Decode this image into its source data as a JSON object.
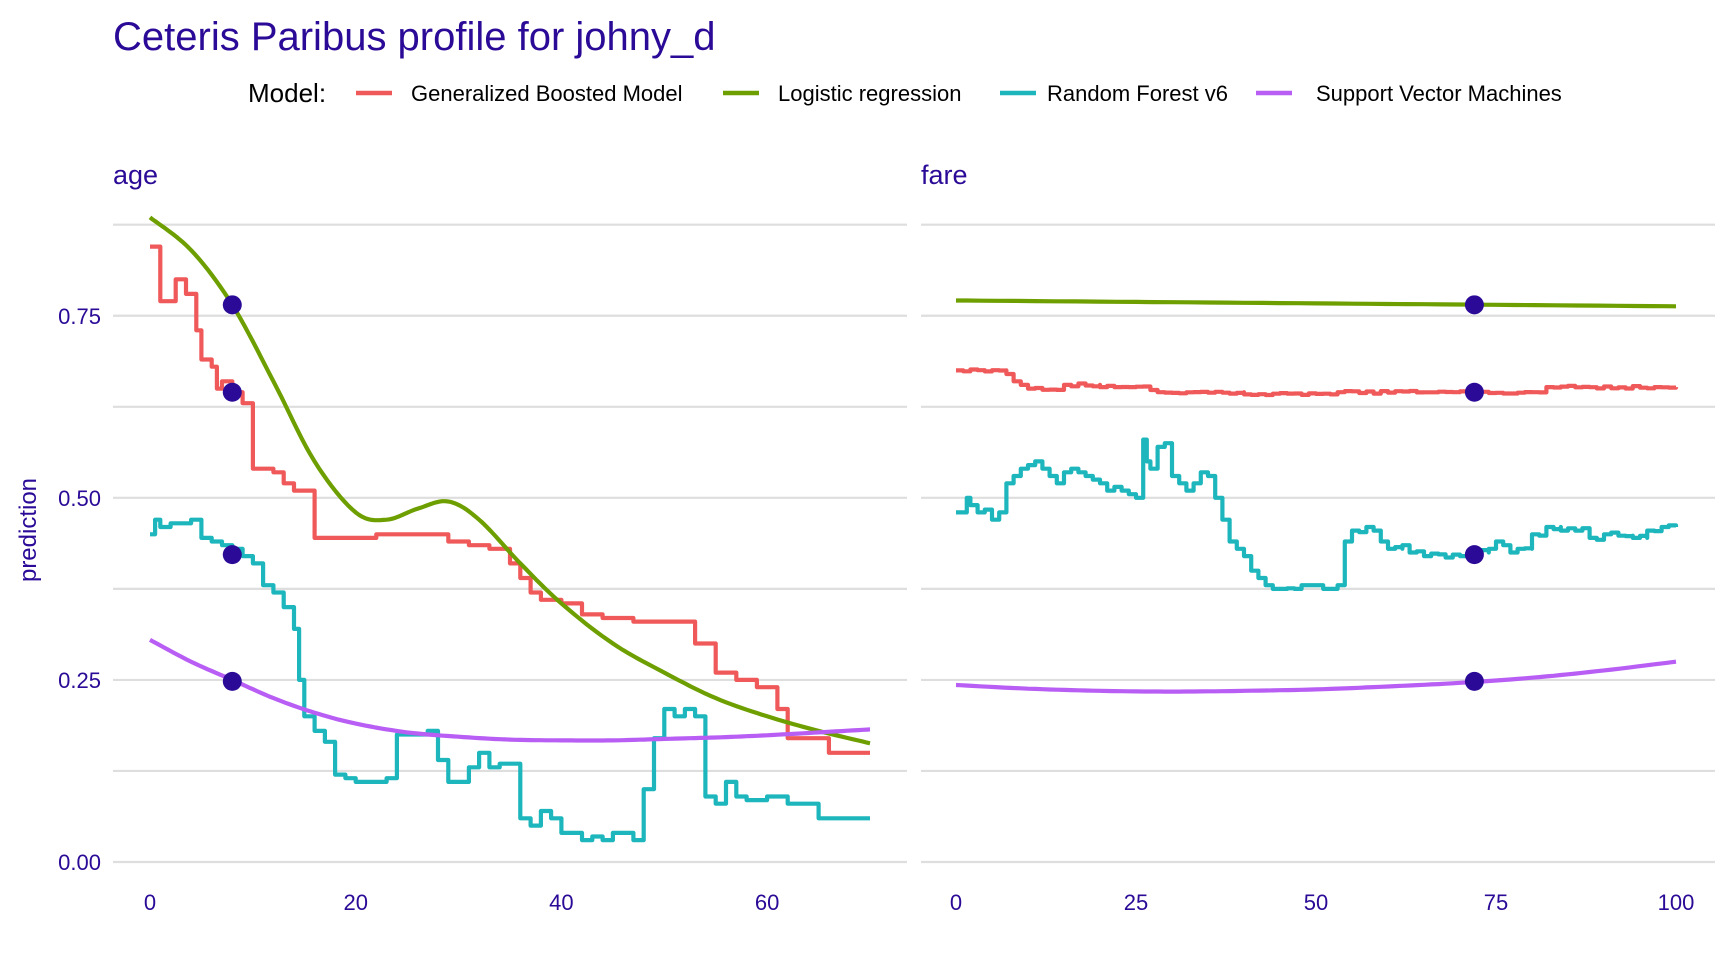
{
  "theme": {
    "text_color": "#2a0a96",
    "point_color": "#2a0a96",
    "grid_color": "#dedede"
  },
  "legend": {
    "title": "Model:",
    "items": [
      {
        "label": "Generalized Boosted Model",
        "color": "#f0595a"
      },
      {
        "label": "Logistic regression",
        "color": "#6e9f00"
      },
      {
        "label": "Random Forest v6",
        "color": "#1db6bc"
      },
      {
        "label": "Support Vector Machines",
        "color": "#b85ef4"
      }
    ]
  },
  "chart_data": {
    "type": "line",
    "title": "Ceteris Paribus profile for johny_d",
    "ylabel": "prediction",
    "ylim": [
      0,
      0.9
    ],
    "yticks": [
      0,
      0.25,
      0.5,
      0.75
    ],
    "ytick_labels": [
      "0.00",
      "0.25",
      "0.50",
      "0.75"
    ],
    "grid": true,
    "legend_position": "top",
    "panels": [
      {
        "name": "age",
        "xlim": [
          0,
          70
        ],
        "xticks": [
          0,
          20,
          40,
          60
        ],
        "observation_x": 8,
        "series": [
          {
            "name": "Generalized Boosted Model",
            "step": true,
            "x": [
              0,
              1,
              1.5,
              2.5,
              3.5,
              4.5,
              5,
              6,
              6.5,
              7,
              8,
              9,
              10,
              12,
              13,
              14,
              16,
              20,
              22,
              25,
              29,
              31,
              33,
              35,
              36,
              37,
              38,
              40,
              42,
              44,
              47,
              50,
              52,
              53,
              55,
              57,
              59,
              61,
              62,
              66,
              70
            ],
            "y": [
              0.845,
              0.77,
              0.77,
              0.8,
              0.78,
              0.73,
              0.69,
              0.68,
              0.65,
              0.66,
              0.645,
              0.63,
              0.54,
              0.535,
              0.52,
              0.51,
              0.445,
              0.445,
              0.45,
              0.45,
              0.44,
              0.435,
              0.43,
              0.41,
              0.39,
              0.37,
              0.36,
              0.355,
              0.34,
              0.335,
              0.33,
              0.33,
              0.33,
              0.3,
              0.26,
              0.25,
              0.24,
              0.21,
              0.17,
              0.15,
              0.15
            ]
          },
          {
            "name": "Logistic regression",
            "x": [
              0,
              4,
              8,
              12,
              16,
              20,
              23,
              26,
              29,
              32,
              36,
              40,
              45,
              50,
              55,
              60,
              65,
              70
            ],
            "y": [
              0.885,
              0.84,
              0.765,
              0.66,
              0.55,
              0.48,
              0.47,
              0.485,
              0.495,
              0.47,
              0.41,
              0.355,
              0.3,
              0.26,
              0.225,
              0.2,
              0.18,
              0.163
            ]
          },
          {
            "name": "Random Forest v6",
            "step": true,
            "x": [
              0,
              0.5,
              1,
              2,
              4,
              5,
              6,
              7,
              8,
              9,
              10,
              11,
              12,
              13,
              14,
              14.5,
              15,
              16,
              17,
              18,
              19,
              20,
              21,
              23,
              24,
              25,
              26,
              27,
              28,
              29,
              30,
              31,
              32,
              33,
              34,
              35,
              36,
              37,
              38,
              39,
              40,
              41,
              42,
              43,
              44,
              45,
              46,
              47,
              48,
              49,
              50,
              51,
              52,
              53,
              54,
              55,
              56,
              57,
              58,
              60,
              62,
              63,
              65,
              70
            ],
            "y": [
              0.45,
              0.47,
              0.46,
              0.465,
              0.47,
              0.445,
              0.44,
              0.435,
              0.43,
              0.42,
              0.41,
              0.38,
              0.37,
              0.35,
              0.32,
              0.25,
              0.2,
              0.18,
              0.165,
              0.12,
              0.115,
              0.11,
              0.11,
              0.115,
              0.175,
              0.175,
              0.175,
              0.18,
              0.14,
              0.11,
              0.11,
              0.13,
              0.15,
              0.13,
              0.135,
              0.135,
              0.06,
              0.05,
              0.07,
              0.06,
              0.04,
              0.04,
              0.03,
              0.035,
              0.03,
              0.04,
              0.04,
              0.03,
              0.1,
              0.17,
              0.21,
              0.2,
              0.21,
              0.2,
              0.09,
              0.08,
              0.11,
              0.09,
              0.085,
              0.09,
              0.08,
              0.08,
              0.06,
              0.06
            ]
          },
          {
            "name": "Support Vector Machines",
            "x": [
              0,
              4,
              8,
              12,
              16,
              20,
              25,
              30,
              35,
              40,
              45,
              50,
              55,
              60,
              65,
              70
            ],
            "y": [
              0.305,
              0.275,
              0.25,
              0.225,
              0.205,
              0.19,
              0.178,
              0.172,
              0.168,
              0.167,
              0.167,
              0.169,
              0.171,
              0.174,
              0.178,
              0.182
            ]
          }
        ],
        "observation_points": [
          0.765,
          0.645,
          0.422,
          0.248
        ]
      },
      {
        "name": "fare",
        "xlim": [
          0,
          100
        ],
        "xticks": [
          0,
          25,
          50,
          75,
          100
        ],
        "observation_x": 72,
        "series": [
          {
            "name": "Generalized Boosted Model",
            "step": true,
            "x": [
              0,
              7,
              8,
              9,
              10,
              15,
              20,
              27,
              28,
              40,
              52,
              53,
              80,
              82,
              100
            ],
            "y": [
              0.675,
              0.67,
              0.66,
              0.655,
              0.65,
              0.655,
              0.652,
              0.648,
              0.645,
              0.642,
              0.642,
              0.645,
              0.645,
              0.652,
              0.652
            ],
            "noise": 0.002
          },
          {
            "name": "Logistic regression",
            "x": [
              0,
              25,
              50,
              75,
              100
            ],
            "y": [
              0.771,
              0.769,
              0.767,
              0.765,
              0.763
            ]
          },
          {
            "name": "Random Forest v6",
            "step": true,
            "x": [
              0,
              1.5,
              2,
              3,
              5,
              6,
              7,
              8,
              9,
              10,
              11,
              12,
              13,
              14,
              15,
              16,
              17,
              18,
              19,
              20,
              21,
              22,
              23,
              24,
              25,
              26,
              26.5,
              27,
              28,
              29,
              30,
              31,
              32,
              33,
              34,
              35,
              36,
              37,
              38,
              39,
              40,
              41,
              42,
              43,
              44,
              45,
              47,
              48,
              49,
              50,
              51,
              52,
              53,
              54,
              55,
              57,
              58,
              59,
              60,
              62,
              63,
              65,
              70,
              72,
              74,
              75,
              76,
              77,
              78,
              80,
              82,
              84,
              86,
              88,
              90,
              92,
              94,
              96,
              98,
              100
            ],
            "y": [
              0.48,
              0.5,
              0.49,
              0.48,
              0.47,
              0.48,
              0.52,
              0.53,
              0.54,
              0.545,
              0.55,
              0.54,
              0.53,
              0.52,
              0.535,
              0.54,
              0.535,
              0.53,
              0.525,
              0.52,
              0.51,
              0.515,
              0.51,
              0.505,
              0.5,
              0.58,
              0.55,
              0.54,
              0.57,
              0.575,
              0.53,
              0.52,
              0.51,
              0.52,
              0.535,
              0.53,
              0.5,
              0.47,
              0.44,
              0.43,
              0.42,
              0.4,
              0.39,
              0.38,
              0.375,
              0.375,
              0.375,
              0.38,
              0.38,
              0.38,
              0.375,
              0.375,
              0.38,
              0.44,
              0.455,
              0.46,
              0.455,
              0.44,
              0.43,
              0.435,
              0.425,
              0.42,
              0.42,
              0.425,
              0.43,
              0.44,
              0.435,
              0.425,
              0.43,
              0.45,
              0.46,
              0.455,
              0.455,
              0.445,
              0.45,
              0.448,
              0.445,
              0.455,
              0.46,
              0.46
            ],
            "noise": 0.004
          },
          {
            "name": "Support Vector Machines",
            "x": [
              0,
              10,
              20,
              30,
              40,
              50,
              60,
              70,
              80,
              90,
              100
            ],
            "y": [
              0.243,
              0.238,
              0.235,
              0.234,
              0.235,
              0.237,
              0.241,
              0.246,
              0.253,
              0.263,
              0.275
            ]
          }
        ],
        "observation_points": [
          0.765,
          0.645,
          0.422,
          0.248
        ]
      }
    ]
  }
}
